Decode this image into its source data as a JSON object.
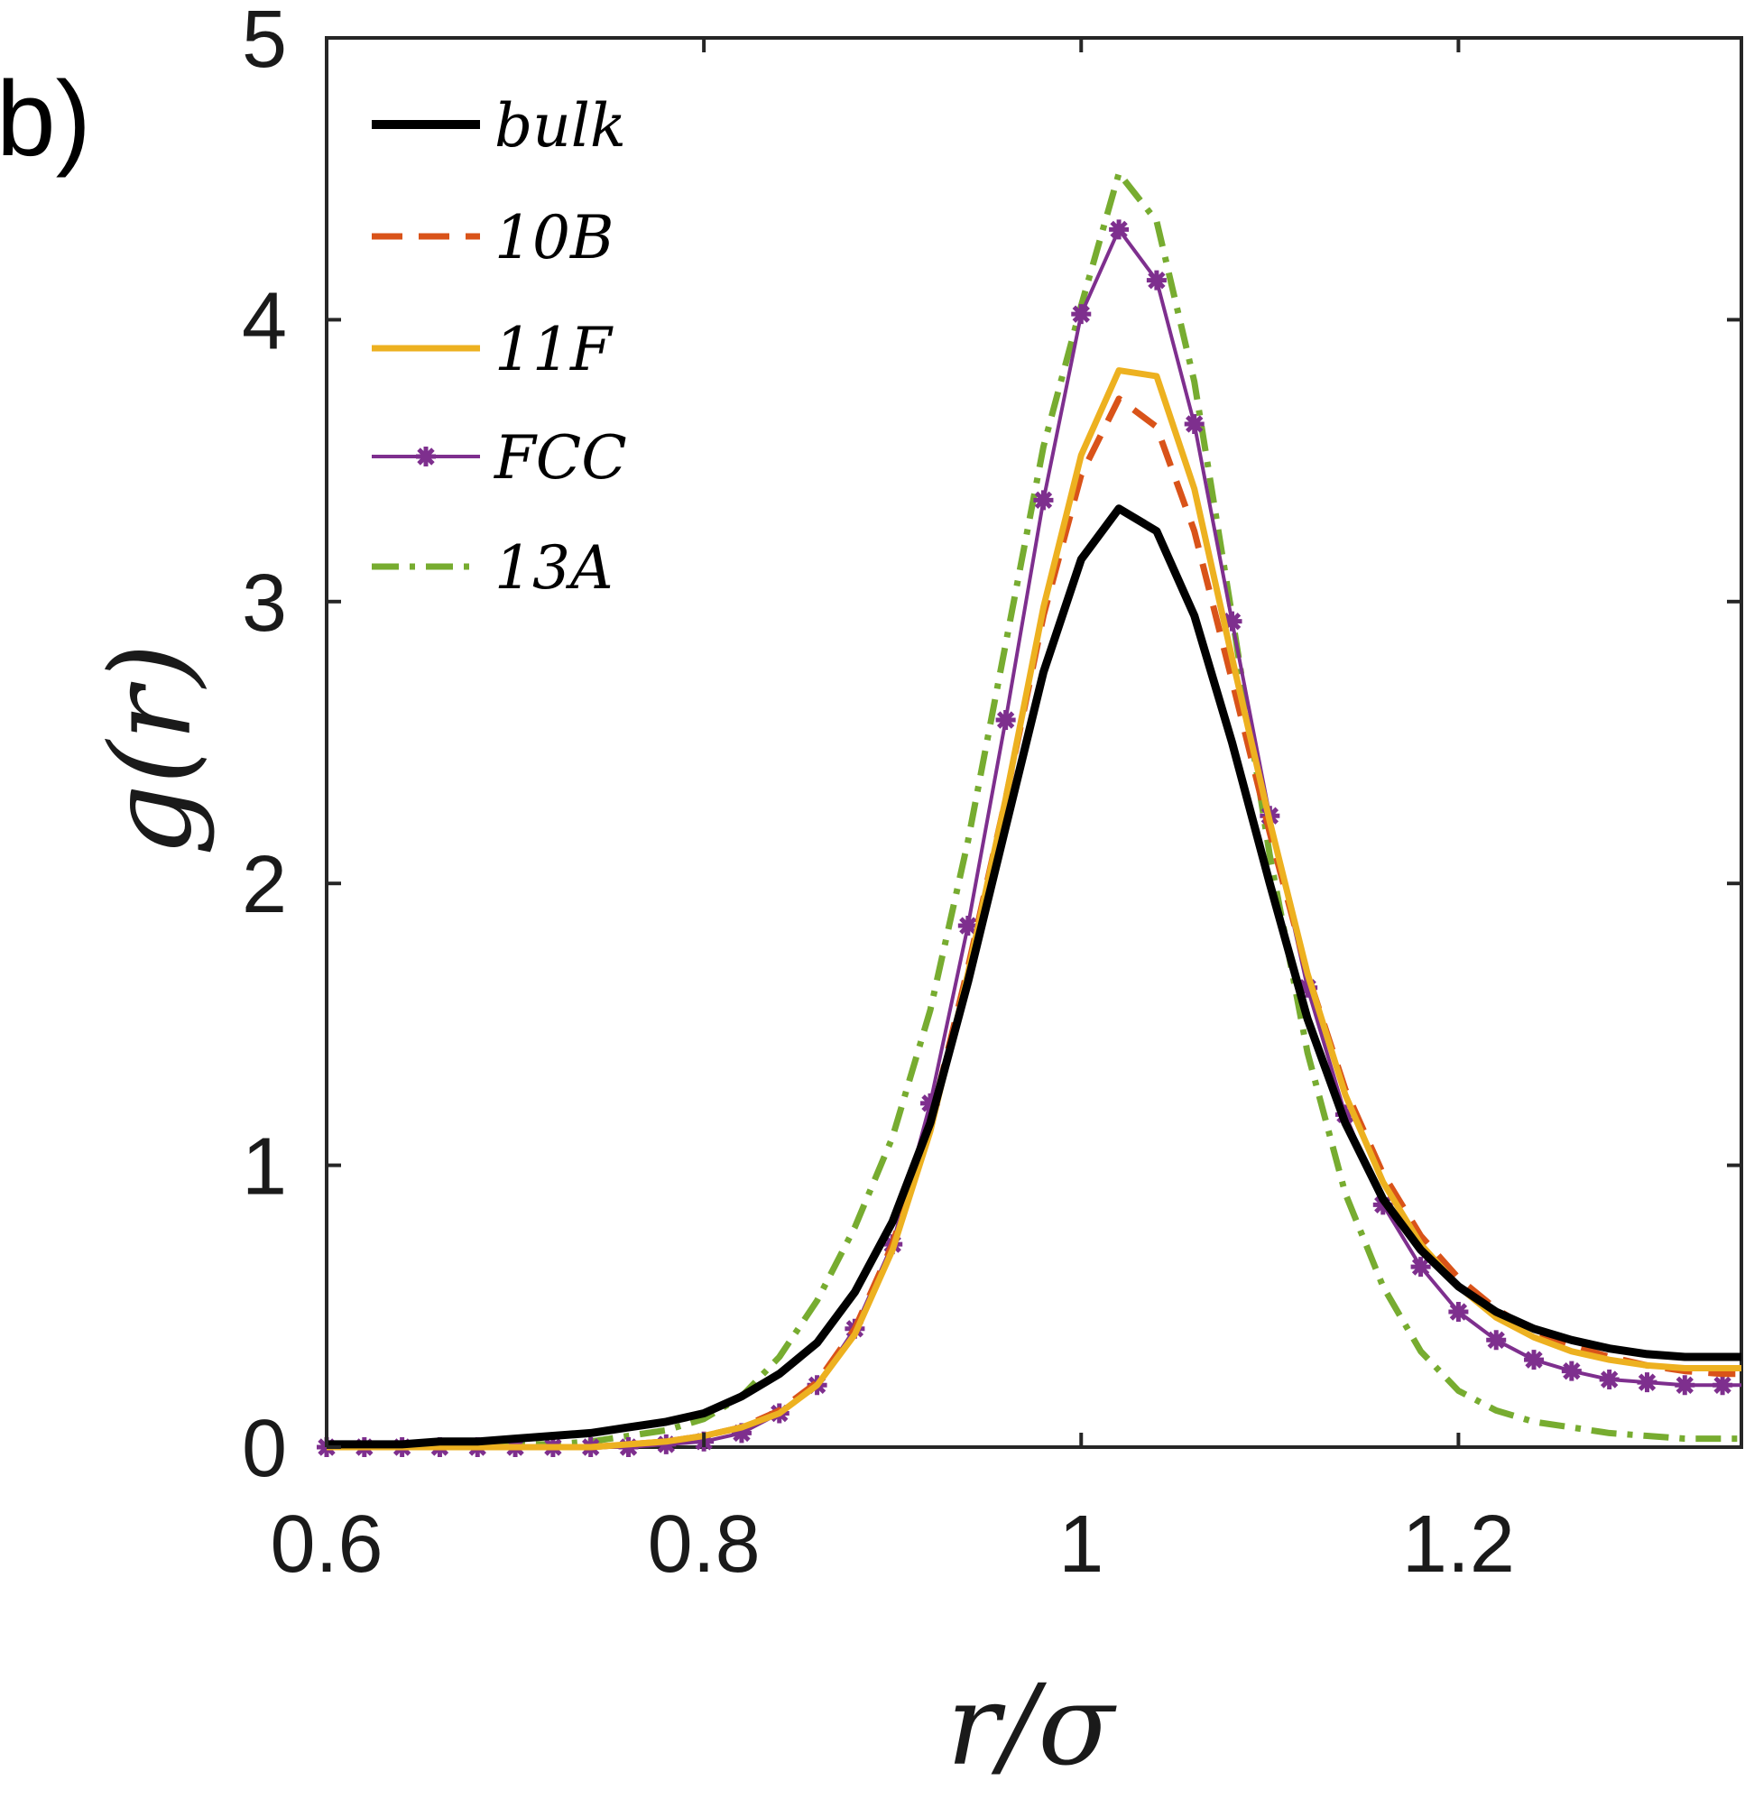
{
  "panel_label": "b)",
  "chart_data": {
    "type": "line",
    "title": "",
    "xlabel": "r/σ",
    "ylabel": "g(r)",
    "xlim": [
      0.6,
      1.35
    ],
    "ylim": [
      0,
      5
    ],
    "xticks": [
      0.6,
      0.8,
      1,
      1.2
    ],
    "xtick_labels": [
      "0.6",
      "0.8",
      "1",
      "1.2"
    ],
    "yticks": [
      0,
      1,
      2,
      3,
      4,
      5
    ],
    "ytick_labels": [
      "0",
      "1",
      "2",
      "3",
      "4",
      "5"
    ],
    "grid": false,
    "legend_position": "top-left",
    "x": [
      0.6,
      0.62,
      0.64,
      0.66,
      0.68,
      0.7,
      0.72,
      0.74,
      0.76,
      0.78,
      0.8,
      0.82,
      0.84,
      0.86,
      0.88,
      0.9,
      0.92,
      0.94,
      0.96,
      0.98,
      1.0,
      1.02,
      1.04,
      1.06,
      1.08,
      1.1,
      1.12,
      1.14,
      1.16,
      1.18,
      1.2,
      1.22,
      1.24,
      1.26,
      1.28,
      1.3,
      1.32,
      1.34,
      1.35
    ],
    "series": [
      {
        "name": "bulk",
        "color": "#000000",
        "style": "solid",
        "values": [
          0.01,
          0.01,
          0.01,
          0.02,
          0.02,
          0.03,
          0.04,
          0.05,
          0.07,
          0.09,
          0.12,
          0.18,
          0.26,
          0.37,
          0.55,
          0.8,
          1.15,
          1.65,
          2.2,
          2.75,
          3.15,
          3.33,
          3.25,
          2.95,
          2.5,
          2.0,
          1.52,
          1.15,
          0.88,
          0.7,
          0.57,
          0.48,
          0.42,
          0.38,
          0.35,
          0.33,
          0.32,
          0.32,
          0.32
        ]
      },
      {
        "name": "10B",
        "color": "#d95319",
        "style": "dashed",
        "values": [
          0.0,
          0.0,
          0.0,
          0.0,
          0.0,
          0.0,
          0.0,
          0.0,
          0.01,
          0.02,
          0.04,
          0.07,
          0.13,
          0.23,
          0.42,
          0.72,
          1.15,
          1.7,
          2.3,
          2.95,
          3.45,
          3.72,
          3.62,
          3.25,
          2.72,
          2.18,
          1.68,
          1.27,
          0.97,
          0.75,
          0.6,
          0.49,
          0.41,
          0.36,
          0.32,
          0.29,
          0.27,
          0.26,
          0.26
        ]
      },
      {
        "name": "11F",
        "color": "#edb120",
        "style": "solid",
        "values": [
          0.0,
          0.0,
          0.0,
          0.0,
          0.0,
          0.0,
          0.0,
          0.0,
          0.01,
          0.02,
          0.04,
          0.07,
          0.12,
          0.22,
          0.4,
          0.7,
          1.12,
          1.68,
          2.3,
          2.98,
          3.52,
          3.82,
          3.8,
          3.4,
          2.8,
          2.22,
          1.68,
          1.25,
          0.94,
          0.72,
          0.57,
          0.46,
          0.39,
          0.34,
          0.31,
          0.29,
          0.28,
          0.28,
          0.28
        ]
      },
      {
        "name": "FCC",
        "color": "#7e2f8e",
        "style": "solid-star",
        "values": [
          0.0,
          0.0,
          0.0,
          0.0,
          0.0,
          0.0,
          0.0,
          0.0,
          0.0,
          0.01,
          0.02,
          0.05,
          0.12,
          0.22,
          0.42,
          0.72,
          1.22,
          1.85,
          2.58,
          3.36,
          4.02,
          4.32,
          4.14,
          3.63,
          2.93,
          2.24,
          1.63,
          1.18,
          0.86,
          0.64,
          0.48,
          0.38,
          0.31,
          0.27,
          0.24,
          0.23,
          0.22,
          0.22,
          0.22
        ]
      },
      {
        "name": "13A",
        "color": "#77ac30",
        "style": "dash-dot",
        "values": [
          0.0,
          0.0,
          0.0,
          0.0,
          0.0,
          0.01,
          0.01,
          0.02,
          0.04,
          0.06,
          0.1,
          0.18,
          0.32,
          0.52,
          0.78,
          1.1,
          1.55,
          2.15,
          2.85,
          3.55,
          4.05,
          4.52,
          4.35,
          3.78,
          2.95,
          2.1,
          1.4,
          0.9,
          0.57,
          0.34,
          0.2,
          0.13,
          0.09,
          0.07,
          0.05,
          0.04,
          0.03,
          0.03,
          0.03
        ]
      }
    ]
  }
}
